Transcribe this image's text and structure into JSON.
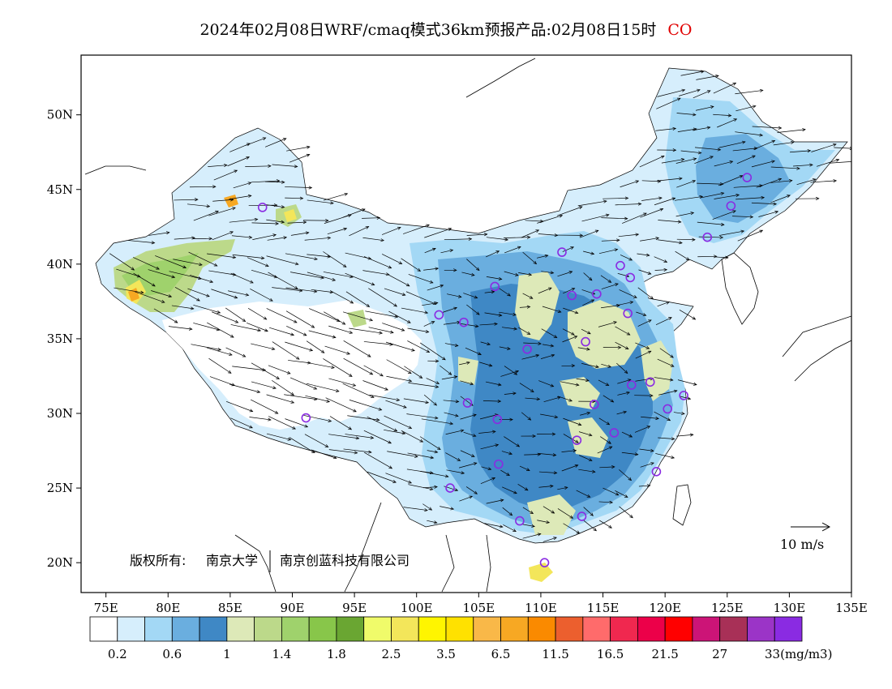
{
  "title": {
    "text": "2024年02月08日WRF/cmaq模式36km预报产品:02月08日15时",
    "species": "CO",
    "species_color": "#e00000"
  },
  "axes": {
    "lon_labels": [
      "75E",
      "80E",
      "85E",
      "90E",
      "95E",
      "100E",
      "105E",
      "110E",
      "115E",
      "120E",
      "125E",
      "130E",
      "135E"
    ],
    "lat_labels": [
      "50N",
      "45N",
      "40N",
      "35N",
      "30N",
      "25N",
      "20N"
    ],
    "lon_range": [
      73,
      135
    ],
    "lat_range": [
      18,
      54
    ]
  },
  "copyright": {
    "prefix": "版权所有:",
    "org1": "南京大学",
    "org2": "南京创蓝科技有限公司"
  },
  "wind_reference": {
    "label": "10 m/s"
  },
  "colorbar": {
    "colors": [
      "#ffffff",
      "#d6eefc",
      "#a3d8f5",
      "#6aaedf",
      "#3f88c5",
      "#dde9b8",
      "#bcd98a",
      "#9fd26c",
      "#88c64a",
      "#6aa632",
      "#f0fb6a",
      "#f3e65a",
      "#fff500",
      "#ffe100",
      "#f9b848",
      "#f7a823",
      "#fa8a00",
      "#ec5f2e",
      "#ff6b6b",
      "#f0284f",
      "#ec0049",
      "#ff0000",
      "#cc1477",
      "#a83057",
      "#9b34c7",
      "#8a2be2"
    ],
    "tick_labels": [
      "0.2",
      "0.6",
      "1",
      "1.4",
      "1.8",
      "2.5",
      "3.5",
      "6.5",
      "11.5",
      "16.5",
      "21.5",
      "27",
      "33"
    ],
    "unit": "(mg/m3)"
  },
  "legend_colors": {
    "low": "#d6eefc",
    "mid": "#a3d8f5",
    "high": "#6aaedf",
    "dense": "#3f88c5",
    "yellowgreen": "#dde9b8",
    "green": "#9fd26c",
    "yellow": "#f3e65a",
    "orange": "#f7a823"
  },
  "station_color": "#8a2be2"
}
